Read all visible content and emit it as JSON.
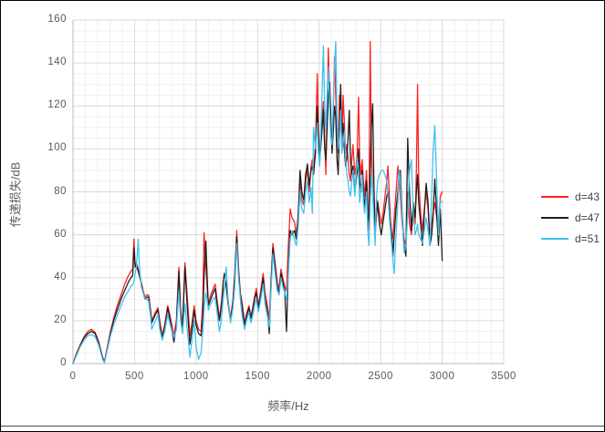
{
  "chart_data": {
    "type": "line",
    "title": "",
    "xlabel": "频率/Hz",
    "ylabel": "传递损失/dB",
    "xlim": [
      0,
      3500
    ],
    "ylim": [
      0,
      160
    ],
    "x_major": 500,
    "x_minor": 100,
    "y_major": 20,
    "y_minor": 5,
    "grid": "on",
    "legend_position": "right",
    "x_ticks": [
      0,
      500,
      1000,
      1500,
      2000,
      2500,
      3000,
      3500
    ],
    "y_ticks": [
      0,
      20,
      40,
      60,
      80,
      100,
      120,
      140,
      160
    ],
    "x": [
      0,
      30,
      60,
      90,
      120,
      150,
      180,
      210,
      240,
      255,
      270,
      300,
      330,
      360,
      390,
      420,
      450,
      470,
      485,
      495,
      505,
      515,
      530,
      540,
      555,
      570,
      585,
      600,
      615,
      630,
      640,
      655,
      670,
      690,
      705,
      725,
      745,
      770,
      790,
      820,
      840,
      860,
      875,
      890,
      910,
      930,
      950,
      965,
      985,
      1000,
      1020,
      1040,
      1055,
      1065,
      1080,
      1090,
      1100,
      1120,
      1140,
      1155,
      1170,
      1190,
      1205,
      1220,
      1230,
      1245,
      1260,
      1280,
      1300,
      1315,
      1330,
      1345,
      1360,
      1375,
      1395,
      1410,
      1430,
      1445,
      1460,
      1475,
      1490,
      1505,
      1520,
      1545,
      1560,
      1580,
      1595,
      1610,
      1625,
      1640,
      1660,
      1675,
      1690,
      1705,
      1720,
      1735,
      1750,
      1765,
      1780,
      1800,
      1815,
      1830,
      1845,
      1860,
      1875,
      1890,
      1905,
      1920,
      1935,
      1945,
      1955,
      1970,
      1985,
      1995,
      2005,
      2015,
      2025,
      2035,
      2045,
      2055,
      2065,
      2075,
      2085,
      2095,
      2105,
      2115,
      2125,
      2135,
      2145,
      2155,
      2165,
      2175,
      2185,
      2195,
      2205,
      2215,
      2225,
      2235,
      2245,
      2255,
      2265,
      2275,
      2290,
      2300,
      2310,
      2320,
      2330,
      2340,
      2350,
      2360,
      2370,
      2385,
      2395,
      2405,
      2415,
      2425,
      2435,
      2445,
      2455,
      2465,
      2475,
      2490,
      2505,
      2520,
      2535,
      2550,
      2560,
      2575,
      2590,
      2600,
      2610,
      2625,
      2640,
      2650,
      2660,
      2675,
      2690,
      2705,
      2720,
      2735,
      2750,
      2765,
      2780,
      2790,
      2800,
      2810,
      2825,
      2840,
      2855,
      2870,
      2885,
      2900,
      2915,
      2925,
      2940,
      2955,
      2970,
      2985,
      3000
    ],
    "series": [
      {
        "name": "d=43",
        "color": "#ff2020",
        "values": [
          0,
          5,
          9,
          12.5,
          15,
          16,
          14.5,
          10,
          3,
          1,
          5,
          14,
          21,
          27,
          32,
          37,
          41,
          43,
          44,
          58,
          46,
          47,
          44,
          42,
          38,
          34,
          31,
          32,
          32,
          25,
          20,
          22,
          24,
          26,
          20,
          13,
          18,
          27,
          22,
          13,
          20,
          45,
          25,
          18,
          47,
          30,
          13,
          18,
          27,
          20,
          16,
          15,
          30,
          61,
          45,
          35,
          28,
          32,
          35,
          37,
          30,
          21,
          28,
          34,
          36,
          38,
          30,
          21,
          30,
          42,
          62,
          45,
          33,
          28,
          19,
          23,
          27,
          22,
          26,
          31,
          35,
          27,
          32,
          42,
          33,
          27,
          20,
          40,
          56,
          48,
          38,
          35,
          44,
          40,
          36,
          34,
          55,
          72,
          68,
          66,
          60,
          70,
          86,
          76,
          74,
          85,
          90,
          80,
          92,
          95,
          90,
          102,
          135,
          110,
          96,
          105,
          115,
          122,
          105,
          88,
          120,
          147,
          125,
          108,
          100,
          118,
          143,
          125,
          105,
          98,
          125,
          115,
          100,
          125,
          112,
          98,
          102,
          95,
          88,
          85,
          95,
          102,
          88,
          92,
          98,
          124,
          95,
          88,
          95,
          85,
          78,
          90,
          75,
          62,
          150,
          100,
          80,
          70,
          62,
          70,
          76,
          70,
          65,
          70,
          78,
          85,
          92,
          72,
          56,
          60,
          68,
          80,
          92,
          85,
          78,
          65,
          58,
          55,
          80,
          65,
          60,
          72,
          65,
          90,
          130,
          85,
          70,
          62,
          72,
          80,
          72,
          58,
          65,
          70,
          75,
          68,
          62,
          78,
          80
        ]
      },
      {
        "name": "d=47",
        "color": "#1f1f1f",
        "values": [
          0,
          4.5,
          8.5,
          12,
          14,
          15,
          14,
          9.5,
          2.5,
          0.5,
          4.5,
          13,
          20,
          25,
          30,
          34,
          38,
          40,
          41,
          54,
          45,
          46,
          43,
          41,
          37,
          33,
          30,
          31,
          31,
          24,
          19,
          21,
          23,
          25,
          18,
          12,
          17,
          26,
          20,
          10,
          18,
          43,
          22,
          16,
          45,
          25,
          9,
          15,
          25,
          18,
          14,
          13,
          22,
          40,
          57,
          40,
          27,
          30,
          33,
          35,
          28,
          20,
          26,
          38,
          42,
          36,
          28,
          20,
          28,
          40,
          59,
          42,
          32,
          26,
          18,
          22,
          26,
          21,
          25,
          30,
          33,
          26,
          30,
          40,
          30,
          24,
          14,
          38,
          54,
          46,
          36,
          33,
          42,
          38,
          34,
          15,
          45,
          62,
          60,
          62,
          58,
          68,
          90,
          80,
          76,
          88,
          93,
          83,
          90,
          92,
          88,
          98,
          120,
          105,
          95,
          102,
          110,
          118,
          100,
          95,
          110,
          125,
          131,
          115,
          98,
          108,
          120,
          115,
          95,
          88,
          110,
          130,
          105,
          112,
          100,
          92,
          96,
          105,
          118,
          95,
          88,
          92,
          80,
          85,
          90,
          100,
          85,
          80,
          90,
          80,
          72,
          85,
          70,
          66,
          90,
          110,
          121,
          85,
          60,
          68,
          75,
          65,
          60,
          66,
          72,
          78,
          80,
          68,
          60,
          50,
          60,
          72,
          80,
          88,
          90,
          70,
          55,
          50,
          105,
          80,
          62,
          75,
          68,
          80,
          88,
          75,
          65,
          55,
          70,
          84,
          75,
          55,
          60,
          68,
          86,
          70,
          55,
          72,
          48
        ]
      },
      {
        "name": "d=51",
        "color": "#3fc1f0",
        "values": [
          0,
          4,
          8,
          11,
          13,
          13.5,
          12.5,
          8.5,
          2,
          0.5,
          4,
          12,
          18,
          22.5,
          27,
          31,
          34,
          36,
          37,
          38,
          42,
          45,
          58,
          45,
          36,
          33,
          30,
          30,
          29,
          22,
          16,
          18,
          20,
          23,
          16,
          11,
          15,
          23,
          18,
          12,
          16,
          34,
          20,
          14,
          28,
          15,
          3,
          10,
          20,
          8,
          2,
          5,
          15,
          25,
          33,
          30,
          25,
          28,
          30,
          31,
          24,
          15,
          20,
          30,
          35,
          45,
          30,
          19,
          26,
          36,
          56,
          40,
          30,
          22,
          16,
          20,
          24,
          19,
          22,
          27,
          30,
          24,
          28,
          37,
          28,
          22,
          17,
          35,
          51,
          43,
          34,
          32,
          40,
          36,
          33,
          30,
          42,
          58,
          62,
          58,
          55,
          64,
          80,
          72,
          70,
          80,
          85,
          75,
          82,
          70,
          110,
          100,
          112,
          98,
          92,
          110,
          128,
          148,
          120,
          108,
          125,
          138,
          120,
          105,
          102,
          120,
          138,
          150,
          115,
          100,
          105,
          118,
          98,
          102,
          108,
          95,
          88,
          85,
          80,
          78,
          85,
          90,
          78,
          88,
          96,
          88,
          75,
          82,
          88,
          75,
          70,
          80,
          62,
          55,
          75,
          88,
          80,
          68,
          55,
          75,
          85,
          88,
          90,
          90,
          88,
          85,
          78,
          65,
          55,
          48,
          42,
          60,
          75,
          90,
          85,
          68,
          52,
          54,
          70,
          90,
          95,
          70,
          60,
          62,
          65,
          60,
          58,
          56,
          62,
          68,
          62,
          55,
          78,
          98,
          111,
          85,
          60,
          76,
          75
        ]
      }
    ],
    "colors": {
      "grid_major": "#d9d9d9",
      "grid_minor": "#efefef",
      "axis_line": "#bdbdbd",
      "tick_label": "#595959",
      "legend_label": "#404040"
    }
  }
}
